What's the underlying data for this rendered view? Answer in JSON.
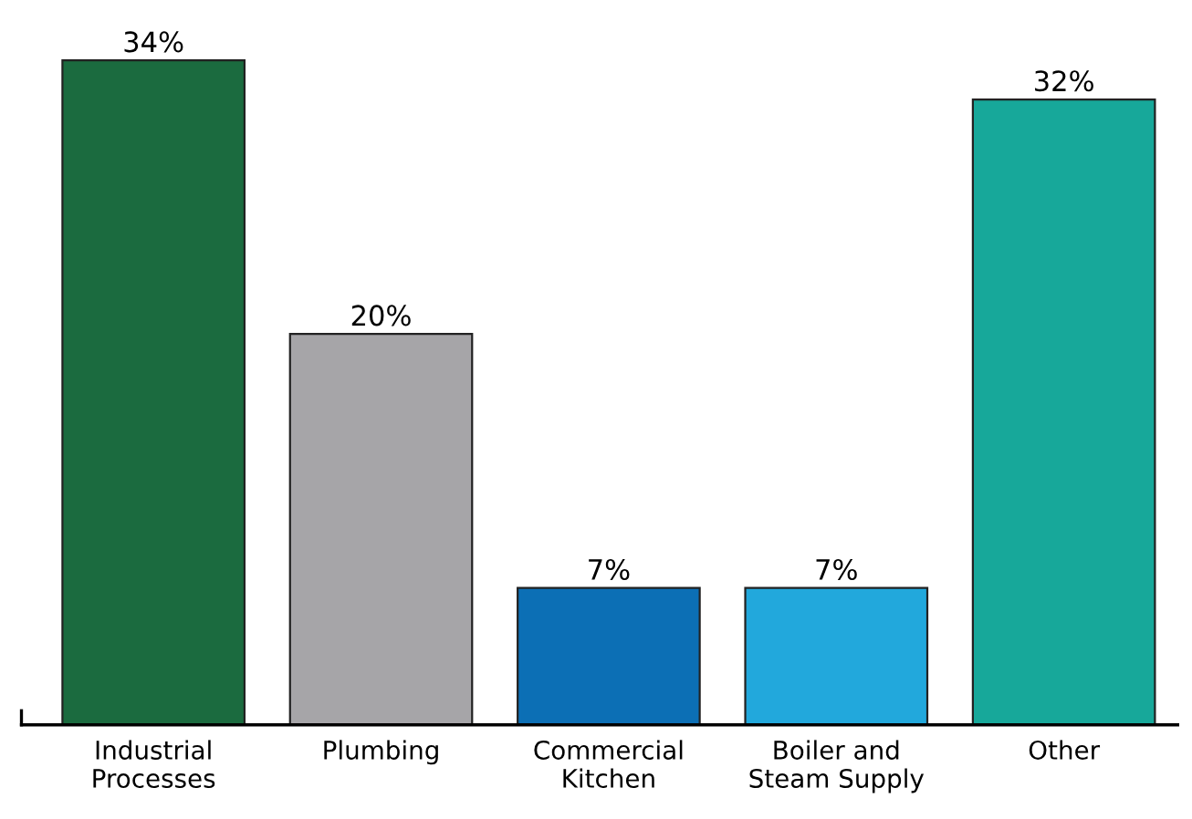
{
  "chart_data": {
    "type": "bar",
    "categories": [
      "Industrial\nProcesses",
      "Plumbing",
      "Commercial\nKitchen",
      "Boiler and\nSteam Supply",
      "Other"
    ],
    "values": [
      34,
      20,
      7,
      7,
      32
    ],
    "colors": [
      "#1b6b3f",
      "#a6a5a8",
      "#0c6fb5",
      "#22a8dc",
      "#17a89a"
    ],
    "value_labels": [
      "34%",
      "20%",
      "7%",
      "7%",
      "32%"
    ],
    "grid": false,
    "legend": false
  }
}
